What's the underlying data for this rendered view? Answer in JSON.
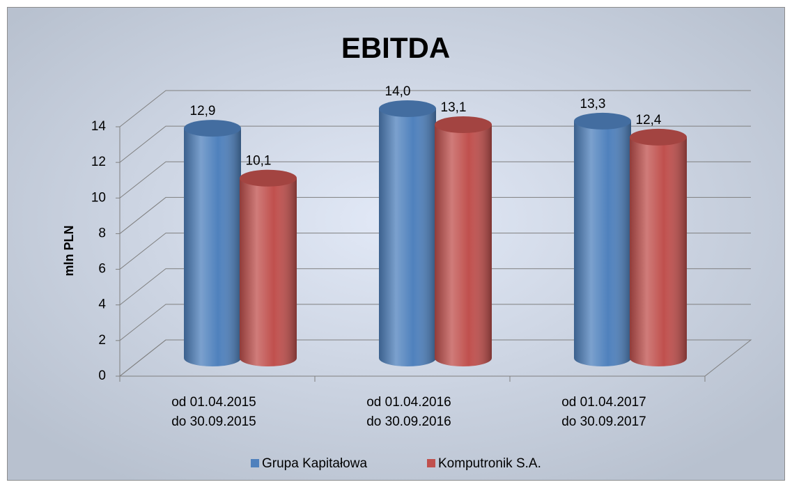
{
  "chart_data": {
    "type": "bar3d",
    "title": "EBITDA",
    "y_label": "mln PLN",
    "categories": [
      [
        "od 01.04.2015",
        "do 30.09.2015"
      ],
      [
        "od 01.04.2016",
        "do 30.09.2016"
      ],
      [
        "od 01.04.2017",
        "do 30.09.2017"
      ]
    ],
    "series": [
      {
        "name": "Grupa Kapitałowa",
        "color": "#4f81bd",
        "values": [
          12.9,
          14.0,
          13.3
        ],
        "value_labels": [
          "12,9",
          "14,0",
          "13,3"
        ]
      },
      {
        "name": "Komputronik S.A.",
        "color": "#c0504d",
        "values": [
          10.1,
          13.1,
          12.4
        ],
        "value_labels": [
          "10,1",
          "13,1",
          "12,4"
        ]
      }
    ],
    "ylim": [
      0,
      14
    ],
    "yticks": [
      0,
      2,
      4,
      6,
      8,
      10,
      12,
      14
    ],
    "grid": true,
    "legend": "bottom"
  }
}
